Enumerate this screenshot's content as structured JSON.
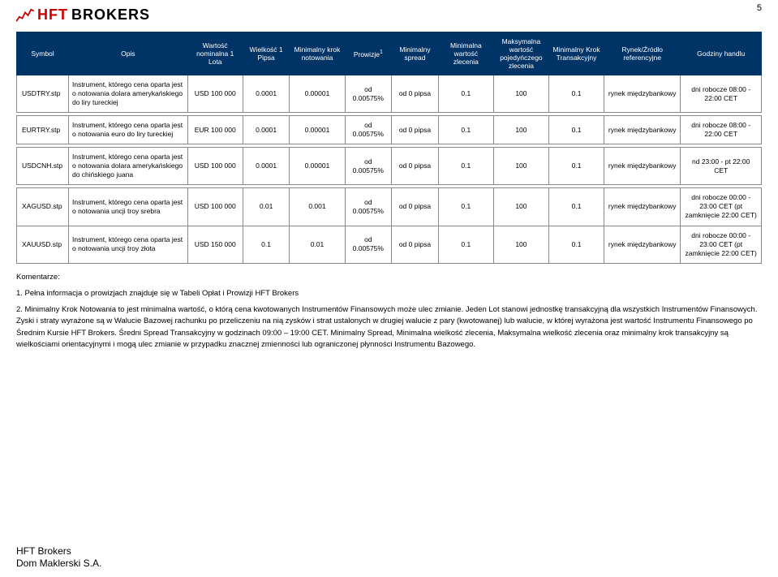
{
  "page_number": "5",
  "logo": {
    "main": "HFT",
    "sub": "BROKERS"
  },
  "header": {
    "c0": "Symbol",
    "c1": "Opis",
    "c2": "Wartość nominalna 1 Lota",
    "c3": "Wielkość 1 Pipsa",
    "c4": "Minimalny krok notowania",
    "c5": "Prowizje",
    "c5_sup": "1",
    "c6": "Minimalny spread",
    "c7": "Minimalna wartość zlecenia",
    "c8": "Maksymalna wartość pojedyńczego zlecenia",
    "c9": "Minimalny Krok Transakcyjny",
    "c10": "Rynek/Źródło referencyjne",
    "c11": "Godziny handlu"
  },
  "rows": [
    {
      "symbol": "USDTRY.stp",
      "opis": "Instrument, którego cena oparta jest o notowania dolara amerykańskiego do liry tureckiej",
      "c2": "USD 100 000",
      "c3": "0.0001",
      "c4": "0.00001",
      "c5": "od 0.00575%",
      "c6": "od 0 pipsa",
      "c7": "0.1",
      "c8": "100",
      "c9": "0.1",
      "c10": "rynek międzybankowy",
      "c11": "dni robocze 08:00 - 22:00 CET"
    },
    {
      "symbol": "EURTRY.stp",
      "opis": "Instrument, którego cena oparta jest o notowania euro do liry tureckiej",
      "c2": "EUR 100 000",
      "c3": "0.0001",
      "c4": "0.00001",
      "c5": "od 0.00575%",
      "c6": "od 0 pipsa",
      "c7": "0.1",
      "c8": "100",
      "c9": "0.1",
      "c10": "rynek międzybankowy",
      "c11": "dni robocze 08:00 - 22:00 CET"
    },
    {
      "symbol": "USDCNH.stp",
      "opis": "Instrument, którego cena oparta jest o notowania dolara amerykańskiego do chińskiego juana",
      "c2": "USD 100 000",
      "c3": "0.0001",
      "c4": "0.00001",
      "c5": "od 0.00575%",
      "c6": "od 0 pipsa",
      "c7": "0.1",
      "c8": "100",
      "c9": "0.1",
      "c10": "rynek międzybankowy",
      "c11": "nd 23:00 - pt 22:00 CET"
    },
    {
      "symbol": "XAGUSD.stp",
      "opis": "Instrument, którego cena oparta jest o notowania uncji troy srebra",
      "c2": "USD 100 000",
      "c3": "0.01",
      "c4": "0.001",
      "c5": "od 0.00575%",
      "c6": "od 0 pipsa",
      "c7": "0.1",
      "c8": "100",
      "c9": "0.1",
      "c10": "rynek międzybankowy",
      "c11": "dni robocze 00:00 - 23:00 CET (pt zamknięcie 22:00 CET)"
    },
    {
      "symbol": "XAUUSD.stp",
      "opis": "Instrument, którego cena oparta jest o notowania uncji troy złota",
      "c2": "USD 150 000",
      "c3": "0.1",
      "c4": "0.01",
      "c5": "od 0.00575%",
      "c6": "od 0 pipsa",
      "c7": "0.1",
      "c8": "100",
      "c9": "0.1",
      "c10": "rynek międzybankowy",
      "c11": "dni robocze 00:00 - 23:00 CET (pt zamknięcie 22:00 CET)"
    }
  ],
  "comments": {
    "title": "Komentarze:",
    "p1": "1. Pełna informacja o prowizjach znajduje się w Tabeli Opłat i Prowizji HFT Brokers",
    "p2": "2. Minimalny Krok Notowania to jest minimalna wartość, o którą cena kwotowanych Instrumentów Finansowych może ulec zmianie. Jeden Lot stanowi jednostkę transakcyjną dla wszystkich Instrumentów Finansowych. Zyski i straty wyrażone są w Walucie Bazowej rachunku po przeliczeniu na nią zysków i strat ustalonych w drugiej walucie z pary (kwotowanej) lub walucie, w której wyrażona jest wartość Instrumentu Finansowego po Średnim Kursie HFT Brokers. Średni Spread Transakcyjny w godzinach 09:00 – 19:00 CET. Minimalny Spread, Minimalna wielkość zlecenia, Maksymalna wielkość zlecenia oraz minimalny krok transakcyjny są wielkościami orientacyjnymi i mogą ulec zmianie w przypadku znacznej zmienności lub ograniczonej płynności Instrumentu Bazowego."
  },
  "footer": {
    "l1": "HFT Brokers",
    "l2": "Dom Maklerski S.A."
  },
  "colors": {
    "header_bg": "#003366",
    "header_fg": "#ffffff",
    "border": "#888888",
    "logo_red": "#cc0000"
  }
}
